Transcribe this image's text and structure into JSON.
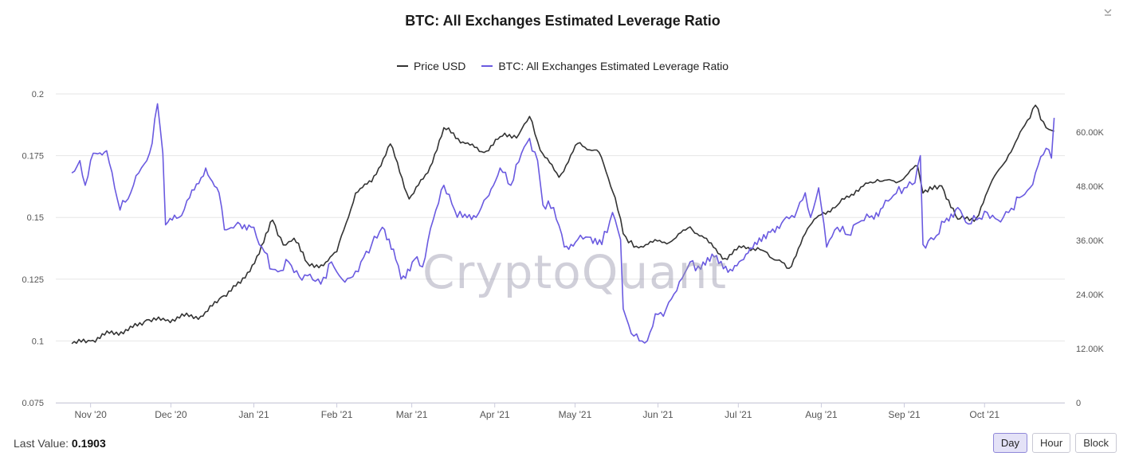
{
  "header": {
    "title": "BTC: All Exchanges Estimated Leverage Ratio"
  },
  "legend": [
    {
      "label": "Price USD",
      "color": "#333333"
    },
    {
      "label": "BTC: All Exchanges Estimated Leverage Ratio",
      "color": "#6a5ae0"
    }
  ],
  "watermark": "CryptoQuant",
  "footer": {
    "last_value_label": "Last Value:",
    "last_value": "0.1903"
  },
  "range_buttons": [
    {
      "label": "Day",
      "active": true
    },
    {
      "label": "Hour",
      "active": false
    },
    {
      "label": "Block",
      "active": false
    }
  ],
  "chart_data": {
    "type": "line",
    "title": "BTC: All Exchanges Estimated Leverage Ratio",
    "x_ticks": [
      "Nov '20",
      "Dec '20",
      "Jan '21",
      "Feb '21",
      "Mar '21",
      "Apr '21",
      "May '21",
      "Jun '21",
      "Jul '21",
      "Aug '21",
      "Sep '21",
      "Oct '21"
    ],
    "y_left": {
      "ticks": [
        "0.075",
        "0.1",
        "0.125",
        "0.15",
        "0.175",
        "0.2"
      ],
      "range": [
        0.075,
        0.2
      ]
    },
    "y_right": {
      "ticks": [
        "0",
        "12.00K",
        "24.00K",
        "36.00K",
        "48.00K",
        "60.00K"
      ],
      "range": [
        0,
        68500
      ]
    },
    "grid": true,
    "legend_position": "top-center",
    "series": [
      {
        "name": "Price USD",
        "axis": "right",
        "color": "#333333",
        "points": [
          [
            "2020-10-25",
            13100
          ],
          [
            "2020-11-01",
            13700
          ],
          [
            "2020-11-08",
            15400
          ],
          [
            "2020-11-15",
            16000
          ],
          [
            "2020-11-22",
            18400
          ],
          [
            "2020-11-29",
            18200
          ],
          [
            "2020-12-06",
            19200
          ],
          [
            "2020-12-13",
            19200
          ],
          [
            "2020-12-20",
            23500
          ],
          [
            "2020-12-27",
            26500
          ],
          [
            "2021-01-03",
            33000
          ],
          [
            "2021-01-08",
            40500
          ],
          [
            "2021-01-12",
            35000
          ],
          [
            "2021-01-16",
            36500
          ],
          [
            "2021-01-21",
            31000
          ],
          [
            "2021-01-27",
            30400
          ],
          [
            "2021-02-01",
            33500
          ],
          [
            "2021-02-08",
            46500
          ],
          [
            "2021-02-14",
            49000
          ],
          [
            "2021-02-21",
            57400
          ],
          [
            "2021-02-28",
            45200
          ],
          [
            "2021-03-07",
            51000
          ],
          [
            "2021-03-13",
            61000
          ],
          [
            "2021-03-21",
            57500
          ],
          [
            "2021-03-28",
            55500
          ],
          [
            "2021-04-03",
            59000
          ],
          [
            "2021-04-10",
            59500
          ],
          [
            "2021-04-14",
            63500
          ],
          [
            "2021-04-18",
            56000
          ],
          [
            "2021-04-25",
            50000
          ],
          [
            "2021-05-02",
            57500
          ],
          [
            "2021-05-10",
            55500
          ],
          [
            "2021-05-16",
            45500
          ],
          [
            "2021-05-19",
            37500
          ],
          [
            "2021-05-23",
            34500
          ],
          [
            "2021-05-30",
            35600
          ],
          [
            "2021-06-06",
            35800
          ],
          [
            "2021-06-13",
            39000
          ],
          [
            "2021-06-20",
            35500
          ],
          [
            "2021-06-26",
            32000
          ],
          [
            "2021-07-03",
            34800
          ],
          [
            "2021-07-10",
            33800
          ],
          [
            "2021-07-20",
            29800
          ],
          [
            "2021-07-26",
            37500
          ],
          [
            "2021-07-31",
            41500
          ],
          [
            "2021-08-07",
            43800
          ],
          [
            "2021-08-14",
            47100
          ],
          [
            "2021-08-22",
            49500
          ],
          [
            "2021-08-29",
            48800
          ],
          [
            "2021-09-06",
            52500
          ],
          [
            "2021-09-08",
            46500
          ],
          [
            "2021-09-15",
            48100
          ],
          [
            "2021-09-21",
            40700
          ],
          [
            "2021-09-28",
            41000
          ],
          [
            "2021-10-03",
            48200
          ],
          [
            "2021-10-10",
            55000
          ],
          [
            "2021-10-16",
            61500
          ],
          [
            "2021-10-20",
            66000
          ],
          [
            "2021-10-24",
            61000
          ],
          [
            "2021-10-27",
            60200
          ]
        ]
      },
      {
        "name": "BTC: All Exchanges Estimated Leverage Ratio",
        "axis": "left",
        "color": "#6a5ae0",
        "points": [
          [
            "2020-10-25",
            0.168
          ],
          [
            "2020-10-28",
            0.173
          ],
          [
            "2020-10-30",
            0.163
          ],
          [
            "2020-11-02",
            0.176
          ],
          [
            "2020-11-07",
            0.177
          ],
          [
            "2020-11-10",
            0.162
          ],
          [
            "2020-11-12",
            0.153
          ],
          [
            "2020-11-16",
            0.16
          ],
          [
            "2020-11-19",
            0.168
          ],
          [
            "2020-11-22",
            0.173
          ],
          [
            "2020-11-24",
            0.18
          ],
          [
            "2020-11-26",
            0.196
          ],
          [
            "2020-11-28",
            0.176
          ],
          [
            "2020-11-29",
            0.147
          ],
          [
            "2020-12-04",
            0.15
          ],
          [
            "2020-12-08",
            0.158
          ],
          [
            "2020-12-14",
            0.17
          ],
          [
            "2020-12-19",
            0.16
          ],
          [
            "2020-12-21",
            0.145
          ],
          [
            "2020-12-26",
            0.148
          ],
          [
            "2020-12-31",
            0.146
          ],
          [
            "2021-01-02",
            0.142
          ],
          [
            "2021-01-05",
            0.136
          ],
          [
            "2021-01-08",
            0.129
          ],
          [
            "2021-01-10",
            0.128
          ],
          [
            "2021-01-14",
            0.132
          ],
          [
            "2021-01-18",
            0.126
          ],
          [
            "2021-01-22",
            0.127
          ],
          [
            "2021-01-26",
            0.123
          ],
          [
            "2021-01-30",
            0.132
          ],
          [
            "2021-02-03",
            0.125
          ],
          [
            "2021-02-07",
            0.126
          ],
          [
            "2021-02-10",
            0.132
          ],
          [
            "2021-02-14",
            0.139
          ],
          [
            "2021-02-18",
            0.146
          ],
          [
            "2021-02-23",
            0.133
          ],
          [
            "2021-02-25",
            0.125
          ],
          [
            "2021-03-02",
            0.133
          ],
          [
            "2021-03-05",
            0.13
          ],
          [
            "2021-03-09",
            0.149
          ],
          [
            "2021-03-13",
            0.163
          ],
          [
            "2021-03-17",
            0.153
          ],
          [
            "2021-03-20",
            0.15
          ],
          [
            "2021-03-25",
            0.15
          ],
          [
            "2021-03-29",
            0.158
          ],
          [
            "2021-04-03",
            0.17
          ],
          [
            "2021-04-07",
            0.163
          ],
          [
            "2021-04-11",
            0.176
          ],
          [
            "2021-04-14",
            0.182
          ],
          [
            "2021-04-17",
            0.173
          ],
          [
            "2021-04-19",
            0.155
          ],
          [
            "2021-04-23",
            0.154
          ],
          [
            "2021-04-27",
            0.138
          ],
          [
            "2021-05-02",
            0.141
          ],
          [
            "2021-05-06",
            0.142
          ],
          [
            "2021-05-11",
            0.139
          ],
          [
            "2021-05-15",
            0.152
          ],
          [
            "2021-05-18",
            0.141
          ],
          [
            "2021-05-19",
            0.113
          ],
          [
            "2021-05-22",
            0.103
          ],
          [
            "2021-05-25",
            0.1
          ],
          [
            "2021-05-28",
            0.1
          ],
          [
            "2021-05-31",
            0.111
          ],
          [
            "2021-06-03",
            0.11
          ],
          [
            "2021-06-06",
            0.117
          ],
          [
            "2021-06-09",
            0.124
          ],
          [
            "2021-06-13",
            0.132
          ],
          [
            "2021-06-17",
            0.129
          ],
          [
            "2021-06-22",
            0.134
          ],
          [
            "2021-06-28",
            0.129
          ],
          [
            "2021-07-03",
            0.133
          ],
          [
            "2021-07-08",
            0.139
          ],
          [
            "2021-07-13",
            0.144
          ],
          [
            "2021-07-18",
            0.149
          ],
          [
            "2021-07-22",
            0.15
          ],
          [
            "2021-07-26",
            0.16
          ],
          [
            "2021-07-28",
            0.15
          ],
          [
            "2021-07-31",
            0.162
          ],
          [
            "2021-08-03",
            0.138
          ],
          [
            "2021-08-07",
            0.146
          ],
          [
            "2021-08-11",
            0.143
          ],
          [
            "2021-08-15",
            0.148
          ],
          [
            "2021-08-19",
            0.15
          ],
          [
            "2021-08-24",
            0.154
          ],
          [
            "2021-08-28",
            0.159
          ],
          [
            "2021-09-01",
            0.162
          ],
          [
            "2021-09-05",
            0.164
          ],
          [
            "2021-09-07",
            0.175
          ],
          [
            "2021-09-08",
            0.139
          ],
          [
            "2021-09-12",
            0.141
          ],
          [
            "2021-09-16",
            0.148
          ],
          [
            "2021-09-21",
            0.154
          ],
          [
            "2021-09-24",
            0.148
          ],
          [
            "2021-09-28",
            0.149
          ],
          [
            "2021-10-02",
            0.152
          ],
          [
            "2021-10-06",
            0.149
          ],
          [
            "2021-10-10",
            0.152
          ],
          [
            "2021-10-14",
            0.158
          ],
          [
            "2021-10-18",
            0.162
          ],
          [
            "2021-10-21",
            0.171
          ],
          [
            "2021-10-24",
            0.178
          ],
          [
            "2021-10-26",
            0.174
          ],
          [
            "2021-10-27",
            0.1903
          ]
        ]
      }
    ]
  }
}
